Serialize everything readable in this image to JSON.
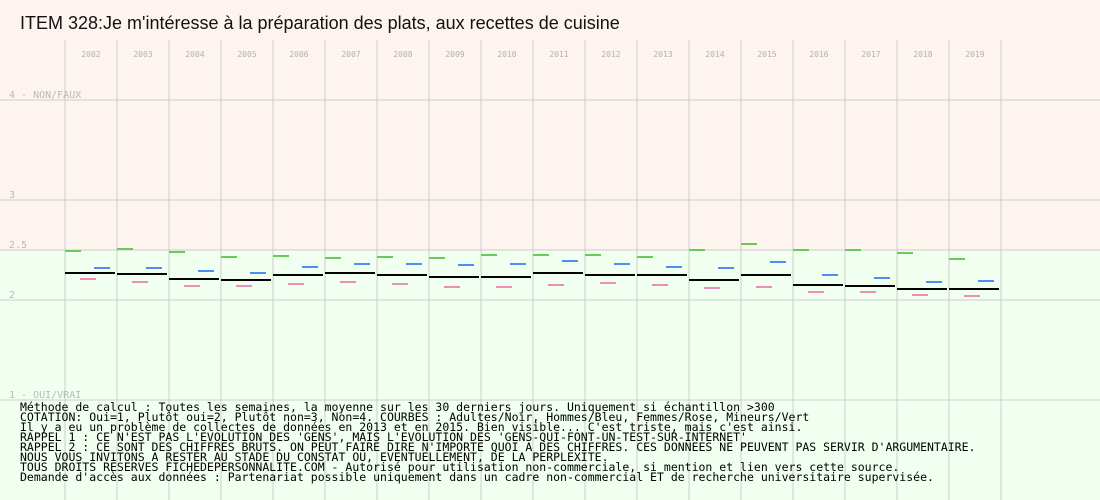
{
  "title": "ITEM 328:Je m'intéresse à la préparation des plats, aux recettes de cuisine",
  "colors": {
    "band_top": "#fdf4f0",
    "band_bottom": "#f0fff0",
    "grid": "#cccccc",
    "adultes": "#000000",
    "hommes": "#4d8ff0",
    "femmes": "#ee8fb8",
    "mineurs": "#66cc55"
  },
  "chart_data": {
    "type": "line",
    "title": "ITEM 328:Je m'intéresse à la préparation des plats, aux recettes de cuisine",
    "categories": [
      "2002",
      "2003",
      "2004",
      "2005",
      "2006",
      "2007",
      "2008",
      "2009",
      "2010",
      "2011",
      "2012",
      "2013",
      "2014",
      "2015",
      "2016",
      "2017",
      "2018",
      "2019"
    ],
    "y_ticks": [
      {
        "value": 4,
        "label": "4 - NON/FAUX"
      },
      {
        "value": 3,
        "label": "3"
      },
      {
        "value": 2.5,
        "label": "2.5"
      },
      {
        "value": 2,
        "label": "2"
      },
      {
        "value": 1,
        "label": "1 - OUI/VRAI"
      }
    ],
    "ylim": [
      1,
      4
    ],
    "y_inverted": true,
    "grid": true,
    "series": [
      {
        "name": "Adultes",
        "color": "#000000",
        "values": [
          2.27,
          2.26,
          2.21,
          2.2,
          2.25,
          2.27,
          2.25,
          2.23,
          2.23,
          2.27,
          2.25,
          2.25,
          2.2,
          2.25,
          2.15,
          2.14,
          2.11,
          2.11
        ]
      },
      {
        "name": "Hommes",
        "color": "#4d8ff0",
        "values": [
          2.32,
          2.32,
          2.29,
          2.27,
          2.33,
          2.36,
          2.36,
          2.35,
          2.36,
          2.39,
          2.36,
          2.33,
          2.32,
          2.38,
          2.25,
          2.22,
          2.18,
          2.19
        ]
      },
      {
        "name": "Femmes",
        "color": "#ee8fb8",
        "values": [
          2.21,
          2.18,
          2.14,
          2.14,
          2.16,
          2.18,
          2.16,
          2.13,
          2.13,
          2.15,
          2.17,
          2.15,
          2.12,
          2.13,
          2.08,
          2.08,
          2.05,
          2.04
        ]
      },
      {
        "name": "Mineurs",
        "color": "#66cc55",
        "values": [
          2.49,
          2.51,
          2.48,
          2.43,
          2.44,
          2.42,
          2.43,
          2.42,
          2.45,
          2.45,
          2.45,
          2.43,
          2.5,
          2.56,
          2.5,
          2.5,
          2.47,
          2.41
        ]
      }
    ]
  },
  "footer": [
    "Méthode de calcul : Toutes les semaines, la moyenne sur les 30 derniers jours. Uniquement si échantillon >300",
    "COTATION: Oui=1, Plutôt oui=2, Plutôt non=3, Non=4. COURBES : Adultes/Noir, Hommes/Bleu, Femmes/Rose, Mineurs/Vert",
    "Il y a eu un problème de collectes de données en 2013 et en 2015. Bien visible... C'est triste, mais c'est ainsi.",
    "RAPPEL 1 : CE N'EST PAS L'EVOLUTION DES 'GENS', MAIS L'EVOLUTION DES 'GENS-QUI-FONT-UN-TEST-SUR-INTERNET'",
    "RAPPEL 2 : CE SONT DES CHIFFRES BRUTS. ON PEUT FAIRE DIRE N'IMPORTE QUOI A DES CHIFFRES. CES DONNEES NE PEUVENT PAS SERVIR D'ARGUMENTAIRE.",
    "           NOUS VOUS INVITONS A RESTER AU STADE DU CONSTAT OU, EVENTUELLEMENT,  DE LA PERPLEXITE.",
    "TOUS DROITS RESERVES FICHEDEPERSONNALITE.COM - Autorisé pour utilisation non-commerciale, si mention et lien vers cette source.",
    "Demande d'accès aux données : Partenariat possible uniquement dans un cadre non-commercial ET de recherche universitaire supervisée."
  ]
}
